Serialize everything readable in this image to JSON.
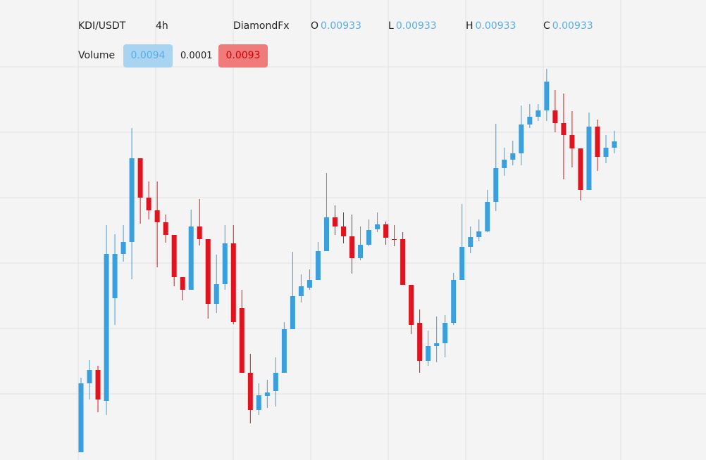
{
  "header": {
    "symbol": "KDI/USDT",
    "interval": "4h",
    "source": "DiamondFx",
    "ohlc": [
      {
        "label": "O",
        "value": "0.00933"
      },
      {
        "label": "L",
        "value": "0.00933"
      },
      {
        "label": "H",
        "value": "0.00933"
      },
      {
        "label": "C",
        "value": "0.00933"
      }
    ],
    "volume": {
      "label": "Volume",
      "values": [
        "0.0094",
        "0.0001",
        "0.0093"
      ]
    }
  },
  "chart_data": {
    "type": "candlestick",
    "up_color": "#3a9fdc",
    "down_color": "#e0141e",
    "ylim": [
      0.008424,
      0.009542
    ],
    "open": [
      0.008446,
      0.008642,
      0.00868,
      0.008592,
      0.008884,
      0.00901,
      0.009044,
      0.009282,
      0.00917,
      0.009134,
      0.0091,
      0.009064,
      0.008944,
      0.008908,
      0.009088,
      0.009052,
      0.008868,
      0.008924,
      0.00904,
      0.008856,
      0.008672,
      0.008566,
      0.008606,
      0.00862,
      0.008672,
      0.008796,
      0.00889,
      0.008914,
      0.008936,
      0.009018,
      0.009114,
      0.009088,
      0.00906,
      0.008998,
      0.009036,
      0.00908,
      0.009094,
      0.009052,
      0.009052,
      0.008922,
      0.008814,
      0.008706,
      0.008748,
      0.008756,
      0.008814,
      0.008936,
      0.00903,
      0.009058,
      0.009074,
      0.009158,
      0.009254,
      0.009278,
      0.009296,
      0.009378,
      0.0094,
      0.009418,
      0.009418,
      0.009382,
      0.009348,
      0.00931,
      0.009192,
      0.009372,
      0.009286,
      0.009312
    ],
    "high": [
      0.008658,
      0.008708,
      0.008692,
      0.009092,
      0.009066,
      0.009092,
      0.009368,
      0.009282,
      0.009216,
      0.009216,
      0.009122,
      0.009064,
      0.008944,
      0.009136,
      0.009166,
      0.009052,
      0.009008,
      0.009092,
      0.009092,
      0.008908,
      0.008726,
      0.008642,
      0.008652,
      0.008716,
      0.008816,
      0.009016,
      0.008952,
      0.008966,
      0.009044,
      0.00924,
      0.009148,
      0.009128,
      0.009122,
      0.009088,
      0.009108,
      0.009128,
      0.009102,
      0.009092,
      0.009072,
      0.008922,
      0.008852,
      0.008792,
      0.008832,
      0.008836,
      0.008956,
      0.009152,
      0.009088,
      0.009108,
      0.009192,
      0.00938,
      0.009312,
      0.009332,
      0.009432,
      0.009436,
      0.009436,
      0.009536,
      0.009476,
      0.009466,
      0.009416,
      0.00931,
      0.009412,
      0.009392,
      0.009348,
      0.00936
    ],
    "low": [
      0.008446,
      0.008596,
      0.00856,
      0.008552,
      0.008808,
      0.008988,
      0.008938,
      0.009096,
      0.009108,
      0.008972,
      0.009042,
      0.008918,
      0.008878,
      0.008908,
      0.009034,
      0.008826,
      0.008842,
      0.008908,
      0.00881,
      0.008672,
      0.008528,
      0.008552,
      0.008572,
      0.008576,
      0.008672,
      0.008796,
      0.008872,
      0.008908,
      0.008936,
      0.009018,
      0.009064,
      0.00904,
      0.008954,
      0.008992,
      0.009032,
      0.009072,
      0.009036,
      0.009032,
      0.008922,
      0.008782,
      0.008672,
      0.008692,
      0.008702,
      0.008716,
      0.008808,
      0.008936,
      0.009012,
      0.009046,
      0.009072,
      0.009132,
      0.009232,
      0.009262,
      0.009262,
      0.009368,
      0.009388,
      0.009388,
      0.009356,
      0.009222,
      0.009256,
      0.009162,
      0.009192,
      0.009246,
      0.009268,
      0.009296
    ],
    "close": [
      0.008642,
      0.00868,
      0.008596,
      0.00901,
      0.00901,
      0.009044,
      0.009282,
      0.00917,
      0.009134,
      0.0091,
      0.009064,
      0.008944,
      0.008908,
      0.009088,
      0.009052,
      0.008868,
      0.008924,
      0.00904,
      0.008816,
      0.008672,
      0.008566,
      0.008608,
      0.008616,
      0.008672,
      0.008796,
      0.00889,
      0.008918,
      0.008936,
      0.009018,
      0.009114,
      0.009088,
      0.00906,
      0.008998,
      0.009036,
      0.009078,
      0.009094,
      0.009056,
      0.00905,
      0.008922,
      0.008808,
      0.008706,
      0.008748,
      0.008756,
      0.008814,
      0.008936,
      0.00903,
      0.009058,
      0.009074,
      0.009158,
      0.009254,
      0.009278,
      0.009296,
      0.009378,
      0.0094,
      0.009418,
      0.0095,
      0.009382,
      0.009348,
      0.00931,
      0.009192,
      0.009372,
      0.009286,
      0.009312,
      0.00933
    ]
  }
}
